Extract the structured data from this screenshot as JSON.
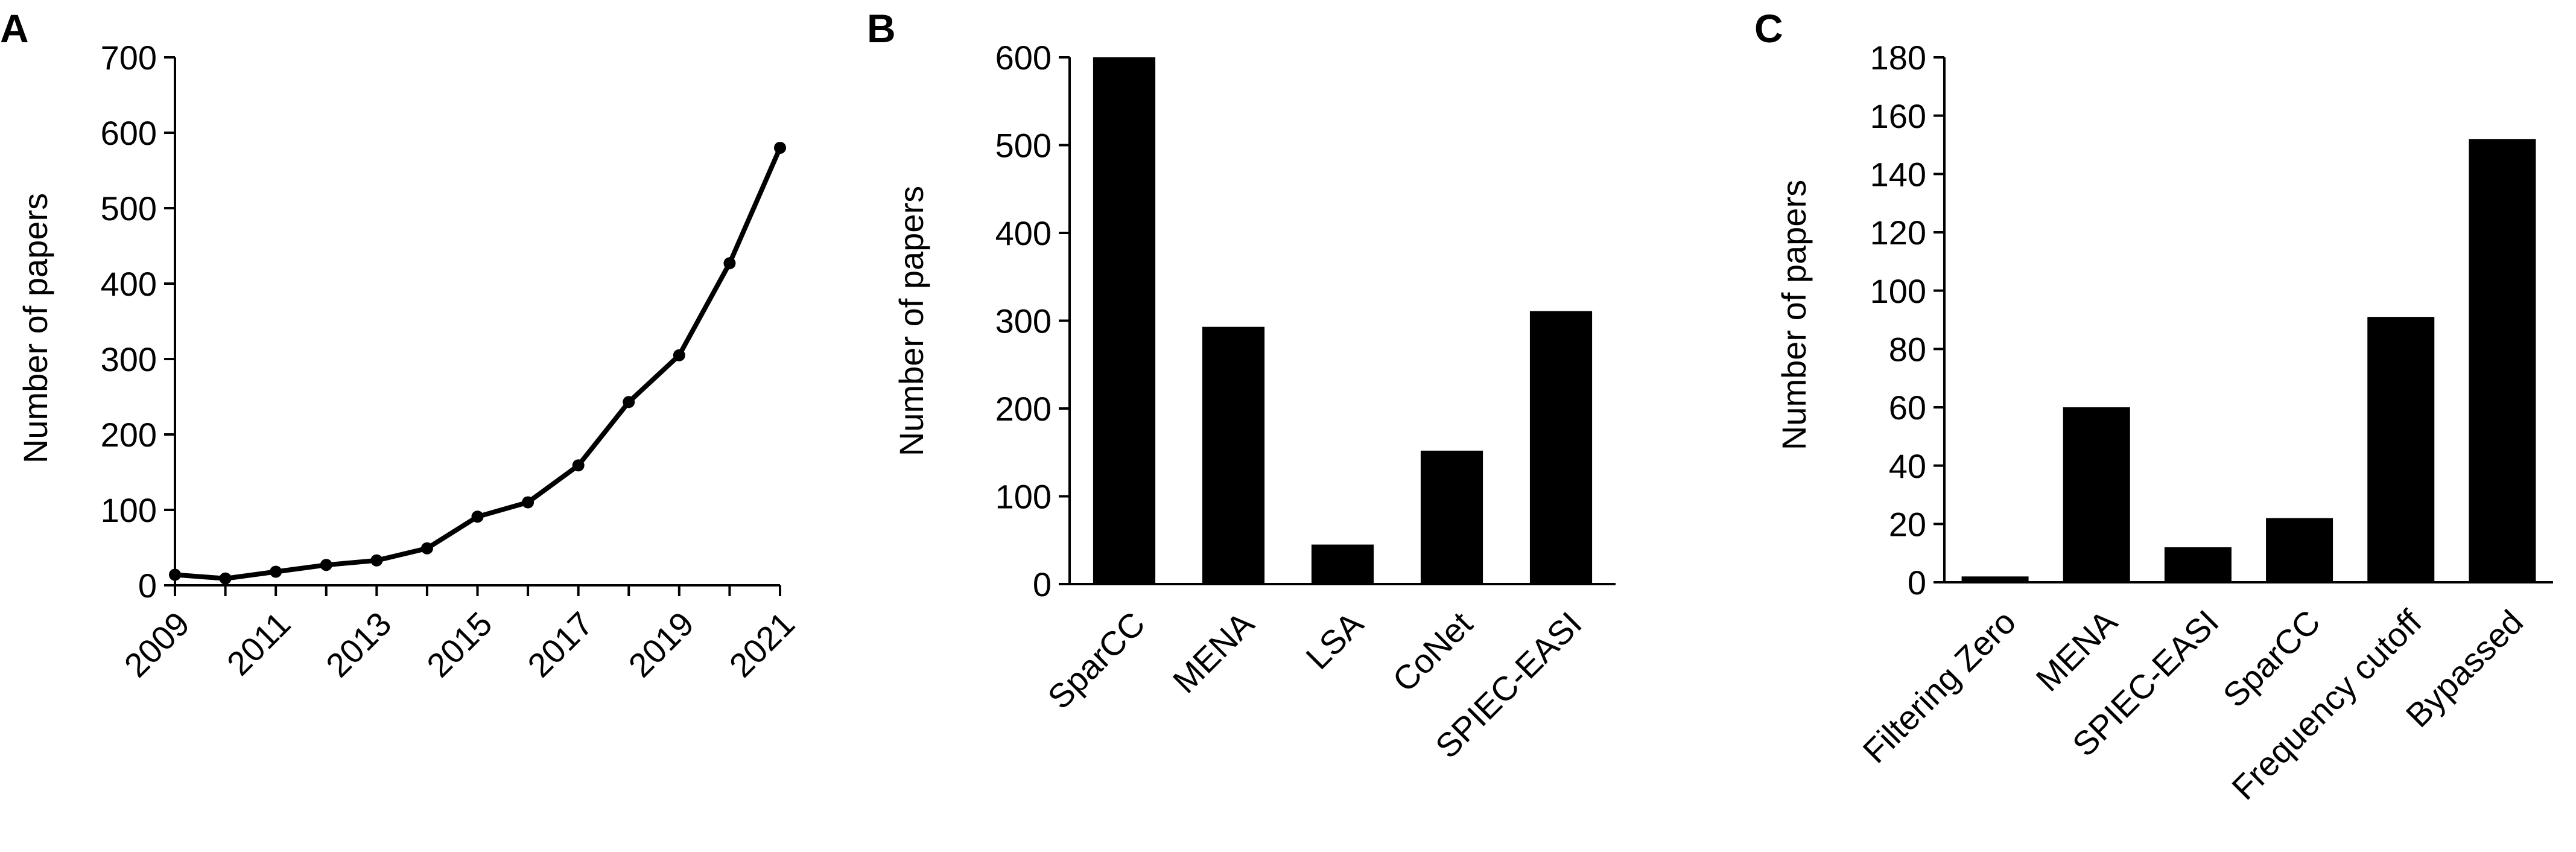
{
  "panels": [
    {
      "letter": "A"
    },
    {
      "letter": "B"
    },
    {
      "letter": "C"
    }
  ],
  "chart_data": [
    {
      "type": "line",
      "panel": "A",
      "title": "",
      "xlabel": "",
      "ylabel": "Number of papers",
      "x": [
        2009,
        2010,
        2011,
        2012,
        2013,
        2014,
        2015,
        2016,
        2017,
        2018,
        2019,
        2020,
        2021
      ],
      "series": [
        {
          "values": [
            14,
            9,
            18,
            27,
            33,
            49,
            91,
            110,
            159,
            243,
            305,
            427,
            580
          ]
        }
      ],
      "x_tick_labels": [
        "2009",
        "2011",
        "2013",
        "2015",
        "2017",
        "2019",
        "2021"
      ],
      "xlim": [
        2009,
        2021
      ],
      "ylim": [
        0,
        700
      ],
      "yticks": [
        0,
        100,
        200,
        300,
        400,
        500,
        600,
        700
      ],
      "grid": false,
      "line_color": "#000000",
      "marker": "circle"
    },
    {
      "type": "bar",
      "panel": "B",
      "title": "",
      "xlabel": "",
      "ylabel": "Number of papers",
      "categories": [
        "SparCC",
        "MENA",
        "LSA",
        "CoNet",
        "SPIEC-EASI"
      ],
      "values": [
        600,
        293,
        45,
        152,
        311
      ],
      "ylim": [
        0,
        600
      ],
      "yticks": [
        0,
        100,
        200,
        300,
        400,
        500,
        600
      ],
      "grid": false,
      "bar_color": "#000000"
    },
    {
      "type": "bar",
      "panel": "C",
      "title": "",
      "xlabel": "",
      "ylabel": "Number of papers",
      "categories": [
        "Filtering Zero",
        "MENA",
        "SPIEC-EASI",
        "SparCC",
        "Frequency cutoff",
        "Bypassed"
      ],
      "values": [
        2,
        60,
        12,
        22,
        91,
        152
      ],
      "ylim": [
        0,
        180
      ],
      "yticks": [
        0,
        20,
        40,
        60,
        80,
        100,
        120,
        140,
        160,
        180
      ],
      "grid": false,
      "bar_color": "#000000"
    }
  ]
}
